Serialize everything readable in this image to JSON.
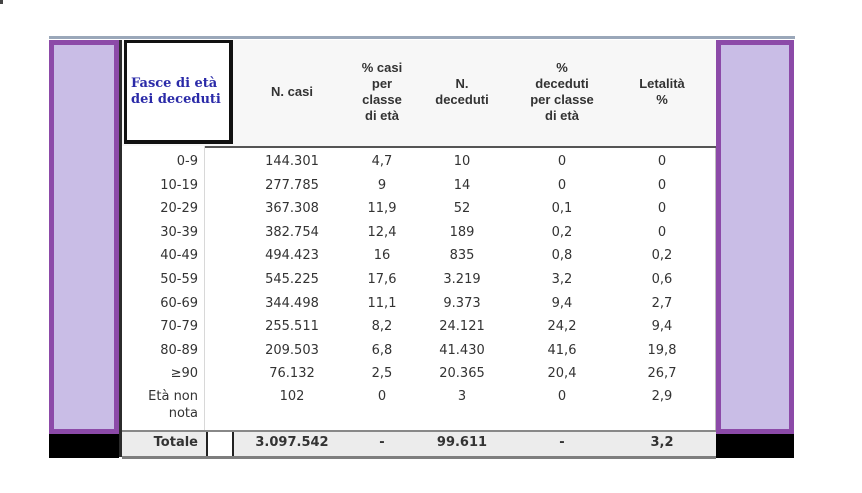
{
  "table": {
    "header": {
      "age": "Fasce di età\ndei deceduti",
      "cases": "N. casi",
      "pct_cases": "% casi\nper\nclasse\ndi età",
      "deaths": "N.\ndeceduti",
      "pct_deaths": "%\ndeceduti\nper classe\ndi età",
      "lethality": "Letalità\n%"
    },
    "rows": [
      {
        "age": "0-9",
        "cases": "144.301",
        "pct_cases": "4,7",
        "deaths": "10",
        "pct_deaths": "0",
        "lethality": "0"
      },
      {
        "age": "10-19",
        "cases": "277.785",
        "pct_cases": "9",
        "deaths": "14",
        "pct_deaths": "0",
        "lethality": "0"
      },
      {
        "age": "20-29",
        "cases": "367.308",
        "pct_cases": "11,9",
        "deaths": "52",
        "pct_deaths": "0,1",
        "lethality": "0"
      },
      {
        "age": "30-39",
        "cases": "382.754",
        "pct_cases": "12,4",
        "deaths": "189",
        "pct_deaths": "0,2",
        "lethality": "0"
      },
      {
        "age": "40-49",
        "cases": "494.423",
        "pct_cases": "16",
        "deaths": "835",
        "pct_deaths": "0,8",
        "lethality": "0,2"
      },
      {
        "age": "50-59",
        "cases": "545.225",
        "pct_cases": "17,6",
        "deaths": "3.219",
        "pct_deaths": "3,2",
        "lethality": "0,6"
      },
      {
        "age": "60-69",
        "cases": "344.498",
        "pct_cases": "11,1",
        "deaths": "9.373",
        "pct_deaths": "9,4",
        "lethality": "2,7"
      },
      {
        "age": "70-79",
        "cases": "255.511",
        "pct_cases": "8,2",
        "deaths": "24.121",
        "pct_deaths": "24,2",
        "lethality": "9,4"
      },
      {
        "age": "80-89",
        "cases": "209.503",
        "pct_cases": "6,8",
        "deaths": "41.430",
        "pct_deaths": "41,6",
        "lethality": "19,8"
      },
      {
        "age": "≥90",
        "cases": "76.132",
        "pct_cases": "2,5",
        "deaths": "20.365",
        "pct_deaths": "20,4",
        "lethality": "26,7"
      },
      {
        "age": "Età non\nnota",
        "cases": "102",
        "pct_cases": "0",
        "deaths": "3",
        "pct_deaths": "0",
        "lethality": "2,9"
      }
    ],
    "total": {
      "age": "Totale",
      "cases": "3.097.542",
      "pct_cases": "-",
      "deaths": "99.611",
      "pct_deaths": "-",
      "lethality": "3,2"
    }
  },
  "colors": {
    "side_panel_fill": "#c9bde6",
    "side_panel_border": "#8c4aa8",
    "age_header_text": "#2a2aa8"
  }
}
